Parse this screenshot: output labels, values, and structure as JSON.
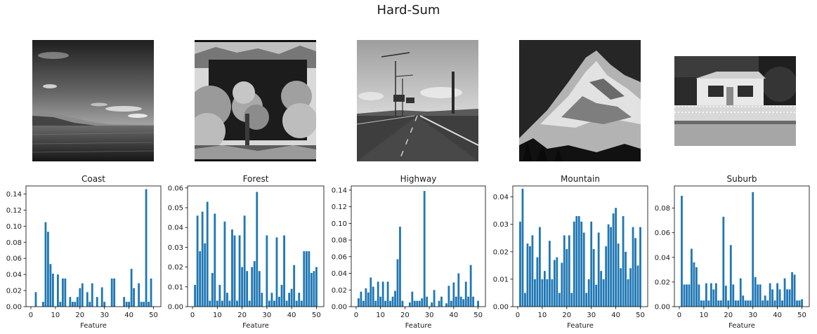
{
  "figure": {
    "title": "Hard-Sum"
  },
  "colors": {
    "bar": "#1f77b4",
    "axis": "#000000",
    "text": "#1a1a1a"
  },
  "images": [
    {
      "name": "coast-photo",
      "subject": "coast"
    },
    {
      "name": "forest-photo",
      "subject": "forest"
    },
    {
      "name": "highway-photo",
      "subject": "highway"
    },
    {
      "name": "mountain-photo",
      "subject": "mountain"
    },
    {
      "name": "suburb-photo",
      "subject": "suburb"
    }
  ],
  "chart_data": [
    {
      "type": "bar",
      "title": "Coast",
      "xlabel": "Feature",
      "ylabel": "",
      "xlim": [
        -2,
        53
      ],
      "ylim": [
        0,
        0.15
      ],
      "xticks": [
        0,
        10,
        20,
        30,
        40,
        50
      ],
      "yticks": [
        0.0,
        0.02,
        0.04,
        0.06,
        0.08,
        0.1,
        0.12,
        0.14
      ],
      "ytick_labels": [
        "0.00",
        "0.02",
        "0.04",
        "0.06",
        "0.08",
        "0.10",
        "0.12",
        "0.14"
      ],
      "grid": false,
      "x": [
        1,
        2,
        3,
        4,
        5,
        6,
        7,
        8,
        9,
        10,
        11,
        12,
        13,
        14,
        15,
        16,
        17,
        18,
        19,
        20,
        21,
        22,
        23,
        24,
        25,
        26,
        27,
        28,
        29,
        30,
        31,
        32,
        33,
        34,
        35,
        36,
        37,
        38,
        39,
        40,
        41,
        42,
        43,
        44,
        45,
        46,
        47,
        48,
        49,
        50
      ],
      "values": [
        0,
        0.018,
        0,
        0,
        0.006,
        0.105,
        0.093,
        0.053,
        0.041,
        0,
        0.04,
        0.006,
        0.035,
        0.035,
        0,
        0.012,
        0.006,
        0.006,
        0.012,
        0.023,
        0.029,
        0,
        0.018,
        0.006,
        0.029,
        0,
        0.012,
        0,
        0.024,
        0.006,
        0,
        0,
        0.035,
        0.035,
        0,
        0,
        0,
        0.012,
        0.006,
        0.006,
        0.047,
        0.023,
        0,
        0.029,
        0.006,
        0.006,
        0.146,
        0.006,
        0.035,
        0
      ]
    },
    {
      "type": "bar",
      "title": "Forest",
      "xlabel": "Feature",
      "ylabel": "",
      "xlim": [
        -2,
        53
      ],
      "ylim": [
        0,
        0.061
      ],
      "xticks": [
        0,
        10,
        20,
        30,
        40,
        50
      ],
      "yticks": [
        0.0,
        0.01,
        0.02,
        0.03,
        0.04,
        0.05,
        0.06
      ],
      "ytick_labels": [
        "0.00",
        "0.01",
        "0.02",
        "0.03",
        "0.04",
        "0.05",
        "0.06"
      ],
      "grid": false,
      "x": [
        1,
        2,
        3,
        4,
        5,
        6,
        7,
        8,
        9,
        10,
        11,
        12,
        13,
        14,
        15,
        16,
        17,
        18,
        19,
        20,
        21,
        22,
        23,
        24,
        25,
        26,
        27,
        28,
        29,
        30,
        31,
        32,
        33,
        34,
        35,
        36,
        37,
        38,
        39,
        40,
        41,
        42,
        43,
        44,
        45,
        46,
        47,
        48,
        49,
        50
      ],
      "values": [
        0.011,
        0.046,
        0.028,
        0.048,
        0.032,
        0.053,
        0.003,
        0.017,
        0.047,
        0.003,
        0.011,
        0.003,
        0.043,
        0.007,
        0.003,
        0.039,
        0.036,
        0.003,
        0.036,
        0.02,
        0.046,
        0.018,
        0.003,
        0.02,
        0.023,
        0.058,
        0.018,
        0.007,
        0,
        0.036,
        0.003,
        0.007,
        0.003,
        0.035,
        0.005,
        0.011,
        0.036,
        0.003,
        0.007,
        0.009,
        0.021,
        0.003,
        0.007,
        0.003,
        0.028,
        0.028,
        0.028,
        0.017,
        0.018,
        0.02
      ]
    },
    {
      "type": "bar",
      "title": "Highway",
      "xlabel": "Feature",
      "ylabel": "",
      "xlim": [
        -2,
        53
      ],
      "ylim": [
        0,
        0.145
      ],
      "xticks": [
        0,
        10,
        20,
        30,
        40,
        50
      ],
      "yticks": [
        0.0,
        0.02,
        0.04,
        0.06,
        0.08,
        0.1,
        0.12,
        0.14
      ],
      "ytick_labels": [
        "0.00",
        "0.02",
        "0.04",
        "0.06",
        "0.08",
        "0.10",
        "0.12",
        "0.14"
      ],
      "grid": false,
      "x": [
        1,
        2,
        3,
        4,
        5,
        6,
        7,
        8,
        9,
        10,
        11,
        12,
        13,
        14,
        15,
        16,
        17,
        18,
        19,
        20,
        21,
        22,
        23,
        24,
        25,
        26,
        27,
        28,
        29,
        30,
        31,
        32,
        33,
        34,
        35,
        36,
        37,
        38,
        39,
        40,
        41,
        42,
        43,
        44,
        45,
        46,
        47,
        48,
        49,
        50
      ],
      "values": [
        0.01,
        0.018,
        0.007,
        0.022,
        0.017,
        0.035,
        0.024,
        0.007,
        0.03,
        0.012,
        0.03,
        0.007,
        0.03,
        0.007,
        0.012,
        0.019,
        0.057,
        0.096,
        0.007,
        0,
        0,
        0.005,
        0.018,
        0.007,
        0.007,
        0.007,
        0.01,
        0.139,
        0.012,
        0,
        0.005,
        0.02,
        0,
        0.007,
        0.012,
        0,
        0.004,
        0.025,
        0.007,
        0.029,
        0.012,
        0.04,
        0.012,
        0.009,
        0.03,
        0.012,
        0.05,
        0.012,
        0,
        0.007
      ]
    },
    {
      "type": "bar",
      "title": "Mountain",
      "xlabel": "Feature",
      "ylabel": "",
      "xlim": [
        -2,
        53
      ],
      "ylim": [
        0,
        0.044
      ],
      "xticks": [
        0,
        10,
        20,
        30,
        40,
        50
      ],
      "yticks": [
        0.0,
        0.01,
        0.02,
        0.03,
        0.04
      ],
      "ytick_labels": [
        "0.00",
        "0.01",
        "0.02",
        "0.03",
        "0.04"
      ],
      "grid": false,
      "x": [
        1,
        2,
        3,
        4,
        5,
        6,
        7,
        8,
        9,
        10,
        11,
        12,
        13,
        14,
        15,
        16,
        17,
        18,
        19,
        20,
        21,
        22,
        23,
        24,
        25,
        26,
        27,
        28,
        29,
        30,
        31,
        32,
        33,
        34,
        35,
        36,
        37,
        38,
        39,
        40,
        41,
        42,
        43,
        44,
        45,
        46,
        47,
        48,
        49,
        50
      ],
      "values": [
        0.031,
        0.043,
        0.005,
        0.023,
        0.022,
        0.026,
        0.01,
        0.018,
        0.029,
        0.01,
        0.013,
        0.01,
        0.024,
        0.01,
        0.017,
        0.018,
        0.005,
        0.016,
        0.026,
        0.021,
        0.026,
        0.005,
        0.031,
        0.033,
        0.033,
        0.031,
        0.027,
        0.005,
        0.01,
        0.031,
        0.021,
        0.008,
        0.027,
        0.013,
        0.01,
        0.022,
        0.03,
        0.029,
        0.034,
        0.036,
        0.023,
        0.014,
        0.033,
        0.02,
        0.01,
        0.014,
        0.029,
        0.025,
        0.015,
        0.029
      ]
    },
    {
      "type": "bar",
      "title": "Suburb",
      "xlabel": "Feature",
      "ylabel": "",
      "xlim": [
        -2,
        53
      ],
      "ylim": [
        0,
        0.098
      ],
      "xticks": [
        0,
        10,
        20,
        30,
        40,
        50
      ],
      "yticks": [
        0.0,
        0.02,
        0.04,
        0.06,
        0.08
      ],
      "ytick_labels": [
        "0.00",
        "0.02",
        "0.04",
        "0.06",
        "0.08"
      ],
      "grid": false,
      "x": [
        1,
        2,
        3,
        4,
        5,
        6,
        7,
        8,
        9,
        10,
        11,
        12,
        13,
        14,
        15,
        16,
        17,
        18,
        19,
        20,
        21,
        22,
        23,
        24,
        25,
        26,
        27,
        28,
        29,
        30,
        31,
        32,
        33,
        34,
        35,
        36,
        37,
        38,
        39,
        40,
        41,
        42,
        43,
        44,
        45,
        46,
        47,
        48,
        49,
        50
      ],
      "values": [
        0.09,
        0.018,
        0.018,
        0.018,
        0.047,
        0.036,
        0.032,
        0.018,
        0.005,
        0.005,
        0.019,
        0.005,
        0.019,
        0.014,
        0.019,
        0.005,
        0.005,
        0.073,
        0.017,
        0.005,
        0.05,
        0.018,
        0.005,
        0.005,
        0.023,
        0.009,
        0.005,
        0.005,
        0.005,
        0.093,
        0.024,
        0.018,
        0.018,
        0.005,
        0.009,
        0.005,
        0.019,
        0.014,
        0.005,
        0.019,
        0.014,
        0.005,
        0.023,
        0.014,
        0.014,
        0.028,
        0.026,
        0.005,
        0.005,
        0.006
      ]
    }
  ]
}
